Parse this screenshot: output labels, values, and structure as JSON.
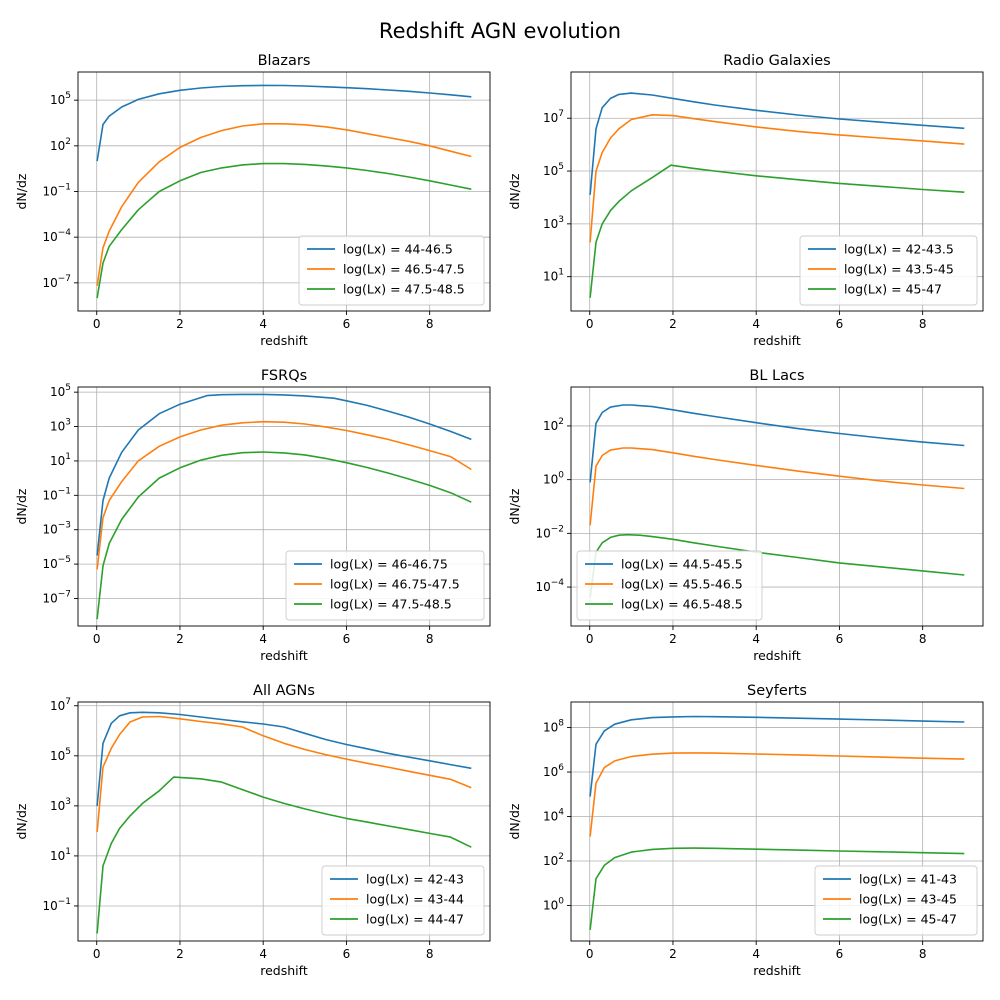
{
  "figure": {
    "suptitle": "Redshift AGN evolution"
  },
  "colors": {
    "series": [
      "#1f77b4",
      "#ff7f0e",
      "#2ca02c"
    ],
    "grid": "#b0b0b0",
    "axis": "#000000"
  },
  "chart_data": [
    {
      "type": "line",
      "title": "Blazars",
      "xlabel": "redshift",
      "ylabel": "dN/dz",
      "yscale": "log",
      "xlim": [
        -0.45,
        9.45
      ],
      "ylim_log10": [
        -8.85,
        6.85
      ],
      "xticks": [
        0,
        2,
        4,
        6,
        8
      ],
      "yticks_exp": [
        -7,
        -4,
        -1,
        2,
        5
      ],
      "legend": "lower-right",
      "grid": true,
      "series": [
        {
          "name": "log(Lx) = 44-46.5",
          "x": [
            0.01,
            0.15,
            0.3,
            0.6,
            1,
            1.5,
            2,
            2.5,
            3,
            3.5,
            4,
            4.5,
            5,
            5.5,
            6,
            6.5,
            7,
            7.5,
            8,
            8.5,
            9
          ],
          "log10_y": [
            1.0,
            3.4,
            3.95,
            4.55,
            5.05,
            5.42,
            5.65,
            5.8,
            5.9,
            5.95,
            5.97,
            5.96,
            5.93,
            5.88,
            5.82,
            5.75,
            5.67,
            5.58,
            5.47,
            5.35,
            5.22
          ]
        },
        {
          "name": "log(Lx) = 46.5-47.5",
          "x": [
            0.01,
            0.15,
            0.3,
            0.6,
            1,
            1.5,
            2,
            2.5,
            3,
            3.5,
            4,
            4.5,
            5,
            5.5,
            6,
            6.5,
            7,
            7.5,
            8,
            8.5,
            9
          ],
          "log10_y": [
            -7.2,
            -4.7,
            -3.6,
            -2.0,
            -0.4,
            0.95,
            1.9,
            2.55,
            3.0,
            3.3,
            3.45,
            3.45,
            3.38,
            3.25,
            3.05,
            2.8,
            2.55,
            2.3,
            2.0,
            1.65,
            1.3
          ]
        },
        {
          "name": "log(Lx) = 47.5-48.5",
          "x": [
            0.01,
            0.15,
            0.3,
            0.6,
            1,
            1.5,
            2,
            2.5,
            3,
            3.5,
            4,
            4.5,
            5,
            5.5,
            6,
            6.5,
            7,
            7.5,
            8,
            8.5,
            9
          ],
          "log10_y": [
            -8.0,
            -5.7,
            -4.6,
            -3.5,
            -2.2,
            -1.0,
            -0.3,
            0.25,
            0.55,
            0.75,
            0.83,
            0.83,
            0.78,
            0.68,
            0.55,
            0.38,
            0.18,
            -0.05,
            -0.3,
            -0.57,
            -0.85
          ]
        }
      ]
    },
    {
      "type": "line",
      "title": "Radio Galaxies",
      "xlabel": "redshift",
      "ylabel": "dN/dz",
      "yscale": "log",
      "xlim": [
        -0.45,
        9.45
      ],
      "ylim_log10": [
        -0.3,
        8.75
      ],
      "xticks": [
        0,
        2,
        4,
        6,
        8
      ],
      "yticks_exp": [
        1,
        3,
        5,
        7
      ],
      "legend": "lower-right",
      "grid": true,
      "series": [
        {
          "name": "log(Lx) = 42-43.5",
          "x": [
            0.01,
            0.15,
            0.3,
            0.5,
            0.7,
            1,
            1.5,
            2,
            2.5,
            3,
            4,
            5,
            6,
            7,
            8,
            9
          ],
          "log10_y": [
            4.1,
            6.6,
            7.4,
            7.75,
            7.9,
            7.95,
            7.88,
            7.75,
            7.62,
            7.5,
            7.3,
            7.12,
            6.97,
            6.85,
            6.73,
            6.62
          ]
        },
        {
          "name": "log(Lx) = 43.5-45",
          "x": [
            0.01,
            0.15,
            0.3,
            0.5,
            0.7,
            1,
            1.5,
            2,
            2.5,
            3,
            4,
            5,
            6,
            7,
            8,
            9
          ],
          "log10_y": [
            2.3,
            5.0,
            5.7,
            6.25,
            6.6,
            6.95,
            7.13,
            7.1,
            6.98,
            6.87,
            6.67,
            6.5,
            6.37,
            6.25,
            6.14,
            6.02
          ]
        },
        {
          "name": "log(Lx) = 45-47",
          "x": [
            0.01,
            0.15,
            0.3,
            0.5,
            0.7,
            1,
            1.5,
            1.95,
            2.5,
            3,
            4,
            5,
            6,
            7,
            8,
            9
          ],
          "log10_y": [
            0.2,
            2.3,
            3.0,
            3.5,
            3.85,
            4.25,
            4.75,
            5.22,
            5.1,
            5.0,
            4.82,
            4.67,
            4.53,
            4.42,
            4.3,
            4.2
          ]
        }
      ]
    },
    {
      "type": "line",
      "title": "FSRQs",
      "xlabel": "redshift",
      "ylabel": "dN/dz",
      "yscale": "log",
      "xlim": [
        -0.45,
        9.45
      ],
      "ylim_log10": [
        -8.6,
        5.3
      ],
      "xticks": [
        0,
        2,
        4,
        6,
        8
      ],
      "yticks_exp": [
        -7,
        -5,
        -3,
        -1,
        1,
        3,
        5
      ],
      "legend": "lower-right",
      "grid": true,
      "series": [
        {
          "name": "log(Lx) = 46-46.75",
          "x": [
            0.01,
            0.15,
            0.3,
            0.6,
            1,
            1.5,
            2,
            2.65,
            3,
            3.5,
            4,
            4.5,
            5,
            5.7,
            6,
            6.5,
            7,
            7.5,
            8,
            8.5,
            9
          ],
          "log10_y": [
            -4.5,
            -1.3,
            0.0,
            1.5,
            2.8,
            3.75,
            4.3,
            4.8,
            4.85,
            4.87,
            4.87,
            4.84,
            4.78,
            4.65,
            4.5,
            4.23,
            3.9,
            3.55,
            3.15,
            2.72,
            2.25
          ]
        },
        {
          "name": "log(Lx) = 46.75-47.5",
          "x": [
            0.01,
            0.15,
            0.3,
            0.6,
            1,
            1.5,
            2,
            2.5,
            3,
            3.5,
            4,
            4.5,
            5,
            5.5,
            6,
            6.5,
            7,
            7.5,
            8,
            8.5,
            9
          ],
          "log10_y": [
            -5.3,
            -2.3,
            -1.3,
            -0.2,
            1.0,
            1.85,
            2.4,
            2.8,
            3.08,
            3.22,
            3.28,
            3.25,
            3.15,
            2.98,
            2.77,
            2.52,
            2.25,
            1.93,
            1.6,
            1.25,
            0.5
          ]
        },
        {
          "name": "log(Lx) = 47.5-48.5",
          "x": [
            0.01,
            0.15,
            0.3,
            0.6,
            1,
            1.5,
            2,
            2.5,
            3,
            3.5,
            4,
            4.5,
            5,
            5.5,
            6,
            6.5,
            7,
            7.5,
            8,
            8.5,
            9
          ],
          "log10_y": [
            -8.2,
            -5.1,
            -3.8,
            -2.4,
            -1.1,
            0.0,
            0.6,
            1.05,
            1.33,
            1.48,
            1.52,
            1.47,
            1.35,
            1.15,
            0.9,
            0.62,
            0.3,
            -0.05,
            -0.42,
            -0.85,
            -1.4
          ]
        }
      ]
    },
    {
      "type": "line",
      "title": "BL Lacs",
      "xlabel": "redshift",
      "ylabel": "dN/dz",
      "yscale": "log",
      "xlim": [
        -0.45,
        9.45
      ],
      "ylim_log10": [
        -5.45,
        3.45
      ],
      "xticks": [
        0,
        2,
        4,
        6,
        8
      ],
      "yticks_exp": [
        -4,
        -2,
        0,
        2
      ],
      "legend": "lower-left",
      "grid": true,
      "series": [
        {
          "name": "log(Lx) = 44.5-45.5",
          "x": [
            0.01,
            0.15,
            0.3,
            0.5,
            0.8,
            1,
            1.5,
            2,
            2.5,
            3,
            4,
            5,
            6,
            7,
            8,
            9
          ],
          "log10_y": [
            -0.1,
            2.1,
            2.5,
            2.7,
            2.78,
            2.78,
            2.72,
            2.6,
            2.47,
            2.35,
            2.12,
            1.9,
            1.72,
            1.55,
            1.4,
            1.27
          ]
        },
        {
          "name": "log(Lx) = 45.5-46.5",
          "x": [
            0.01,
            0.15,
            0.3,
            0.5,
            0.8,
            1,
            1.5,
            2,
            2.5,
            3,
            4,
            5,
            6,
            7,
            8,
            9
          ],
          "log10_y": [
            -1.7,
            0.5,
            0.9,
            1.1,
            1.18,
            1.18,
            1.12,
            1.0,
            0.87,
            0.75,
            0.53,
            0.32,
            0.13,
            -0.05,
            -0.2,
            -0.33
          ]
        },
        {
          "name": "log(Lx) = 46.5-48.5",
          "x": [
            0.01,
            0.15,
            0.3,
            0.5,
            0.7,
            0.9,
            1.2,
            1.5,
            2,
            2.5,
            3,
            4,
            5,
            6,
            7,
            8,
            9
          ],
          "log10_y": [
            -4.4,
            -2.7,
            -2.35,
            -2.15,
            -2.07,
            -2.05,
            -2.07,
            -2.12,
            -2.22,
            -2.35,
            -2.47,
            -2.7,
            -2.9,
            -3.1,
            -3.25,
            -3.4,
            -3.55
          ]
        }
      ]
    },
    {
      "type": "line",
      "title": "All AGNs",
      "xlabel": "redshift",
      "ylabel": "dN/dz",
      "yscale": "log",
      "xlim": [
        -0.45,
        9.45
      ],
      "ylim_log10": [
        -2.4,
        7.15
      ],
      "xticks": [
        0,
        2,
        4,
        6,
        8
      ],
      "yticks_exp": [
        -1,
        1,
        3,
        5,
        7
      ],
      "legend": "lower-right",
      "grid": true,
      "series": [
        {
          "name": "log(Lx) = 42-43",
          "x": [
            0.01,
            0.15,
            0.35,
            0.55,
            0.8,
            1.1,
            1.5,
            2,
            2.5,
            3,
            3.5,
            4,
            4.5,
            5,
            5.5,
            6,
            6.5,
            7,
            7.5,
            8,
            8.5,
            9
          ],
          "log10_y": [
            3.0,
            5.5,
            6.3,
            6.6,
            6.72,
            6.74,
            6.72,
            6.65,
            6.55,
            6.45,
            6.36,
            6.27,
            6.15,
            5.9,
            5.65,
            5.45,
            5.28,
            5.1,
            4.95,
            4.8,
            4.65,
            4.5
          ]
        },
        {
          "name": "log(Lx) = 43-44",
          "x": [
            0.01,
            0.15,
            0.35,
            0.55,
            0.8,
            1.1,
            1.5,
            2,
            2.5,
            3,
            3.5,
            4,
            4.5,
            5,
            5.5,
            6,
            6.5,
            7,
            7.5,
            8,
            8.5,
            9
          ],
          "log10_y": [
            1.95,
            4.55,
            5.3,
            5.85,
            6.35,
            6.55,
            6.57,
            6.48,
            6.37,
            6.28,
            6.15,
            5.8,
            5.5,
            5.25,
            5.05,
            4.87,
            4.7,
            4.55,
            4.38,
            4.22,
            4.06,
            3.72
          ]
        },
        {
          "name": "log(Lx) = 44-47",
          "x": [
            0.01,
            0.15,
            0.35,
            0.55,
            0.8,
            1.1,
            1.5,
            1.85,
            2.5,
            3,
            3.5,
            4,
            4.5,
            5,
            5.5,
            6,
            6.5,
            7,
            7.5,
            8,
            8.5,
            9
          ],
          "log10_y": [
            -2.1,
            0.6,
            1.5,
            2.1,
            2.6,
            3.1,
            3.6,
            4.15,
            4.08,
            3.95,
            3.65,
            3.35,
            3.1,
            2.88,
            2.68,
            2.5,
            2.35,
            2.2,
            2.05,
            1.9,
            1.75,
            1.35
          ]
        }
      ]
    },
    {
      "type": "line",
      "title": "Seyferts",
      "xlabel": "redshift",
      "ylabel": "dN/dz",
      "yscale": "log",
      "xlim": [
        -0.45,
        9.45
      ],
      "ylim_log10": [
        -1.6,
        9.15
      ],
      "xticks": [
        0,
        2,
        4,
        6,
        8
      ],
      "yticks_exp": [
        0,
        2,
        4,
        6,
        8
      ],
      "legend": "lower-right",
      "grid": true,
      "series": [
        {
          "name": "log(Lx) = 41-43",
          "x": [
            0.01,
            0.15,
            0.35,
            0.6,
            1,
            1.5,
            2,
            2.5,
            3,
            4,
            5,
            6,
            7,
            8,
            9
          ],
          "log10_y": [
            4.9,
            7.25,
            7.85,
            8.15,
            8.35,
            8.45,
            8.48,
            8.5,
            8.49,
            8.46,
            8.42,
            8.38,
            8.34,
            8.29,
            8.25
          ]
        },
        {
          "name": "log(Lx) = 43-45",
          "x": [
            0.01,
            0.15,
            0.35,
            0.6,
            1,
            1.5,
            2,
            2.5,
            3,
            4,
            5,
            6,
            7,
            8,
            9
          ],
          "log10_y": [
            3.1,
            5.5,
            6.2,
            6.5,
            6.7,
            6.8,
            6.85,
            6.86,
            6.85,
            6.81,
            6.77,
            6.72,
            6.67,
            6.62,
            6.58
          ]
        },
        {
          "name": "log(Lx) = 45-47",
          "x": [
            0.01,
            0.15,
            0.35,
            0.6,
            1,
            1.5,
            2,
            2.5,
            3,
            4,
            5,
            6,
            7,
            8,
            9
          ],
          "log10_y": [
            -1.1,
            1.2,
            1.8,
            2.15,
            2.4,
            2.52,
            2.57,
            2.58,
            2.57,
            2.53,
            2.49,
            2.45,
            2.41,
            2.37,
            2.33
          ]
        }
      ]
    }
  ]
}
